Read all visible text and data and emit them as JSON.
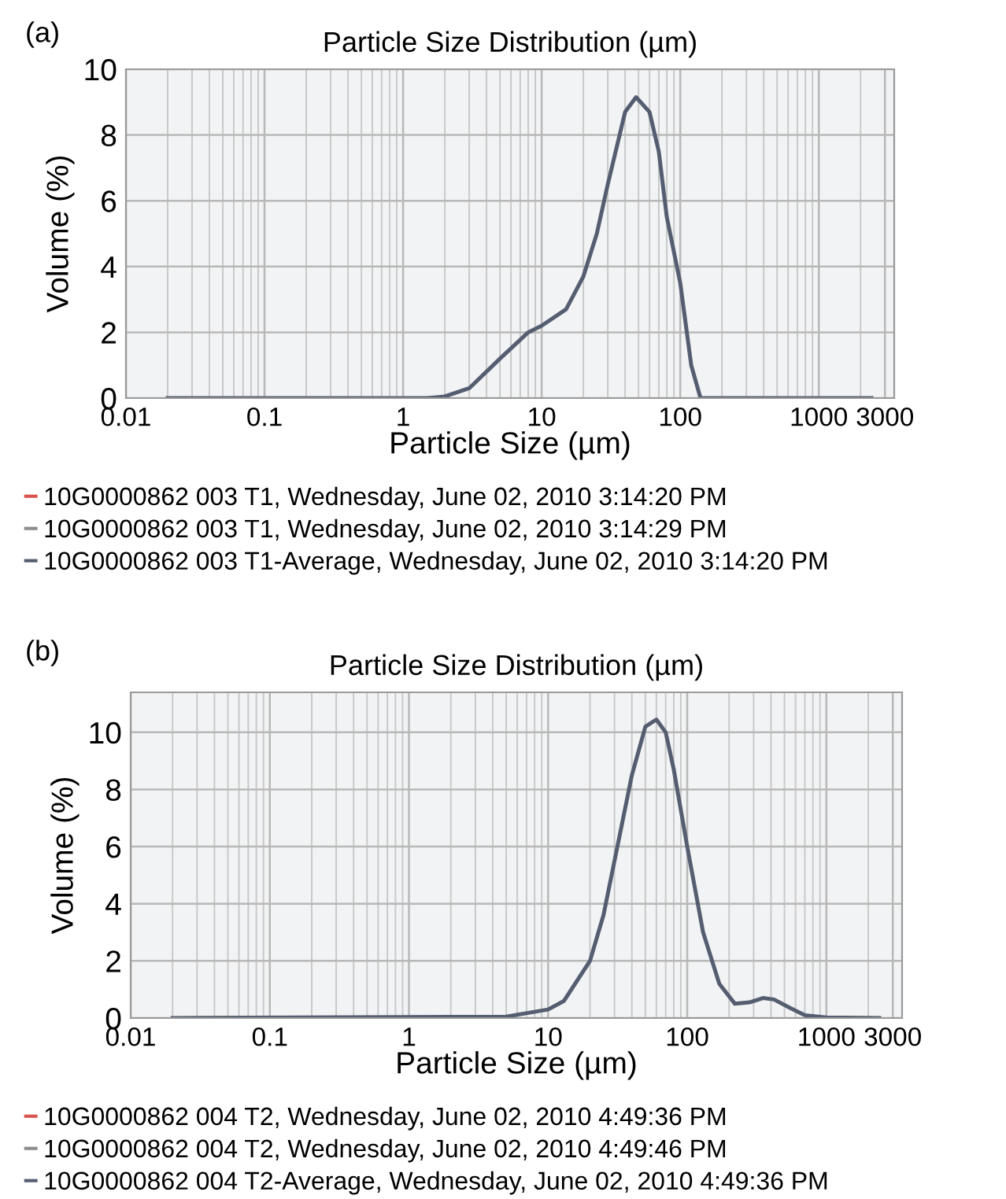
{
  "chart_data": [
    {
      "type": "line",
      "title": "Particle Size Distribution (µm)",
      "xlabel": "Particle Size (µm)",
      "ylabel": "Volume (%)",
      "annotations": [
        "(a)"
      ],
      "log": "x",
      "grid": true,
      "legend": "bottom",
      "xlim": [
        0.01,
        3500
      ],
      "xticks": [
        0.01,
        0.1,
        1,
        10,
        100,
        1000,
        3000
      ],
      "ylim": [
        0,
        10
      ],
      "yticks": [
        0,
        2,
        4,
        6,
        8,
        10
      ],
      "x": [
        0.02,
        1.5,
        2,
        3,
        5,
        8,
        10,
        15,
        20,
        25,
        30,
        40,
        48,
        60,
        70,
        80,
        100,
        120,
        140,
        2400
      ],
      "series": [
        {
          "name": "10G0000862 003 T1, Wednesday, June 02, 2010 3:14:20 PM",
          "color": "#d9534f",
          "values": [
            null,
            null,
            null,
            null,
            null,
            null,
            null,
            null,
            null,
            null,
            null,
            null,
            null,
            null,
            null,
            null,
            null,
            null,
            null,
            null
          ]
        },
        {
          "name": "10G0000862 003 T1, Wednesday, June 02, 2010 3:14:29 PM",
          "color": "#8c8c8c",
          "values": [
            null,
            null,
            null,
            null,
            null,
            null,
            null,
            null,
            null,
            null,
            null,
            null,
            null,
            null,
            null,
            null,
            null,
            null,
            null,
            null
          ]
        },
        {
          "name": "10G0000862 003 T1-Average, Wednesday, June 02, 2010 3:14:20 PM",
          "color": "#555d70",
          "values": [
            0,
            0,
            0.05,
            0.3,
            1.2,
            2.0,
            2.2,
            2.7,
            3.7,
            5,
            6.5,
            8.7,
            9.15,
            8.7,
            7.5,
            5.5,
            3.5,
            1,
            0,
            0
          ]
        }
      ]
    },
    {
      "type": "line",
      "title": "Particle Size Distribution (µm)",
      "xlabel": "Particle Size (µm)",
      "ylabel": "Volume (%)",
      "annotations": [
        "(b)"
      ],
      "log": "x",
      "grid": true,
      "legend": "bottom",
      "xlim": [
        0.01,
        3500
      ],
      "xticks": [
        0.01,
        0.1,
        1,
        10,
        100,
        1000,
        3000
      ],
      "ylim": [
        0,
        11.4
      ],
      "yticks": [
        0,
        2,
        4,
        6,
        8,
        10
      ],
      "x": [
        0.02,
        5,
        10,
        13,
        20,
        25,
        30,
        40,
        50,
        60,
        70,
        80,
        100,
        130,
        170,
        220,
        280,
        350,
        420,
        550,
        700,
        1000,
        2400
      ],
      "series": [
        {
          "name": "10G0000862 004 T2, Wednesday, June 02, 2010 4:49:36 PM",
          "color": "#d9534f",
          "values": [
            null,
            null,
            null,
            null,
            null,
            null,
            null,
            null,
            null,
            null,
            null,
            null,
            null,
            null,
            null,
            null,
            null,
            null,
            null,
            null,
            null,
            null,
            null
          ]
        },
        {
          "name": "10G0000862 004 T2, Wednesday, June 02, 2010 4:49:46 PM",
          "color": "#8c8c8c",
          "values": [
            null,
            null,
            null,
            null,
            null,
            null,
            null,
            null,
            null,
            null,
            null,
            null,
            null,
            null,
            null,
            null,
            null,
            null,
            null,
            null,
            null,
            null,
            null
          ]
        },
        {
          "name": "10G0000862 004 T2-Average, Wednesday, June 02, 2010 4:49:36 PM",
          "color": "#555d70",
          "values": [
            0,
            0.05,
            0.3,
            0.6,
            2,
            3.6,
            5.5,
            8.5,
            10.2,
            10.45,
            10,
            8.7,
            6,
            3,
            1.2,
            0.5,
            0.55,
            0.7,
            0.65,
            0.35,
            0.1,
            0.02,
            0
          ]
        }
      ]
    }
  ]
}
